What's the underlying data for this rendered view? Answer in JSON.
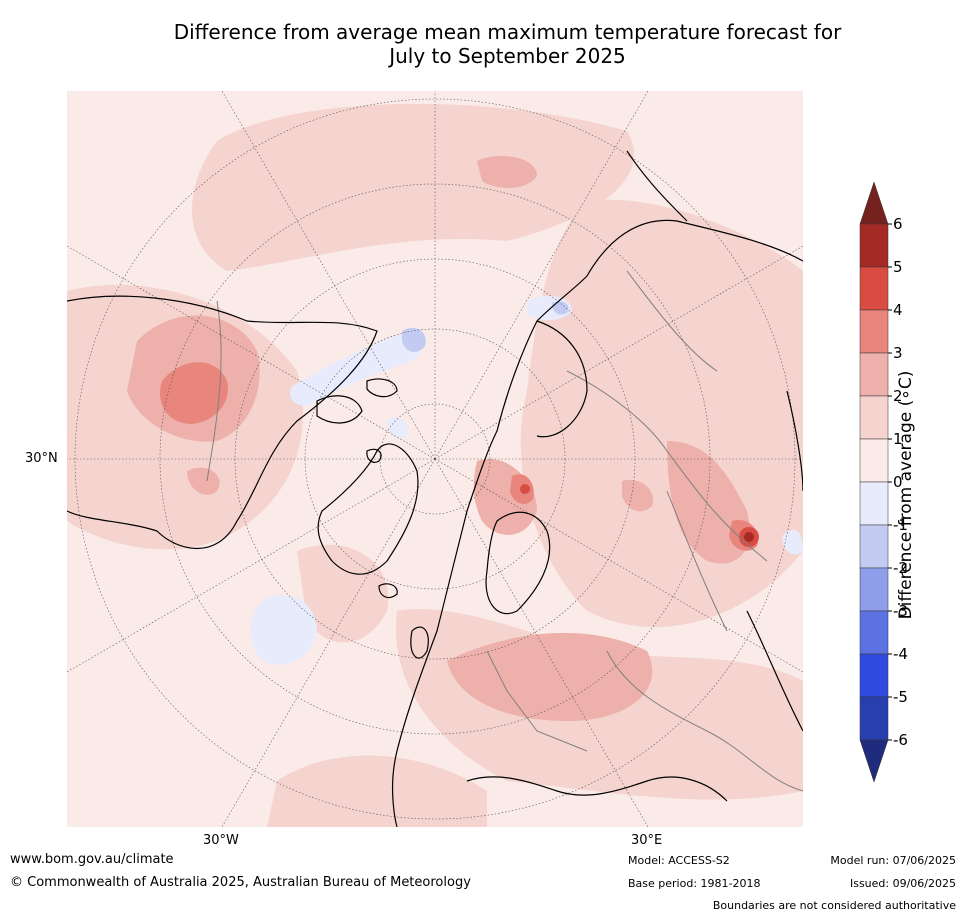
{
  "title": {
    "line1": "Difference from average mean maximum temperature forecast for",
    "line2": "July to September 2025"
  },
  "map": {
    "projection": "north-polar-stereographic",
    "lon_labels": [
      "30°W",
      "30°E"
    ],
    "lat_labels": [
      "30°N"
    ],
    "land_outline_color": "#000000",
    "country_border_color": "#808080",
    "background_color": "#ffffff"
  },
  "colorbar": {
    "label": "Difference from average (∘C)",
    "ticks": [
      "6",
      "5",
      "4",
      "3",
      "2",
      "1",
      "0",
      "-1",
      "-2",
      "-3",
      "-4",
      "-5",
      "-6"
    ],
    "bins": [
      {
        "range": "5 to 6",
        "color": "#a52a26"
      },
      {
        "range": "4 to 5",
        "color": "#d94c43"
      },
      {
        "range": "3 to 4",
        "color": "#e8857d"
      },
      {
        "range": "2 to 3",
        "color": "#eeb0aa"
      },
      {
        "range": "1 to 2",
        "color": "#f5d3cf"
      },
      {
        "range": "0 to 1",
        "color": "#fbebe8"
      },
      {
        "range": "-1 to 0",
        "color": "#e7ebfb"
      },
      {
        "range": "-2 to -1",
        "color": "#c3cbf3"
      },
      {
        "range": "-3 to -2",
        "color": "#8f9eeb"
      },
      {
        "range": "-4 to -3",
        "color": "#5d72e2"
      },
      {
        "range": "-5 to -4",
        "color": "#2f4ade"
      },
      {
        "range": "-6 to -5",
        "color": "#283faf"
      }
    ],
    "over_color": "#75211e",
    "under_color": "#1f2c7e"
  },
  "footer": {
    "url": "www.bom.gov.au/climate",
    "copyright": "© Commonwealth of Australia 2025, Australian Bureau of Meteorology",
    "model": "Model: ACCESS-S2",
    "base_period": "Base period: 1981-2018",
    "model_run": "Model run: 07/06/2025",
    "issued": "Issued: 09/06/2025",
    "disclaimer": "Boundaries are not considered authoritative"
  }
}
